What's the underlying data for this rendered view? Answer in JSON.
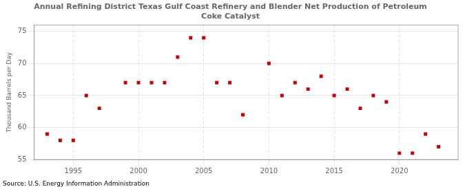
{
  "chart_data": {
    "type": "scatter",
    "title": "Annual Refining District Texas Gulf Coast Refinery and Blender Net Production of Petroleum\nCoke Catalyst",
    "ylabel": "Thousand Barrels per Day",
    "source": "Source: U.S. Energy Information Administration",
    "x": [
      1993,
      1994,
      1995,
      1996,
      1997,
      1999,
      2000,
      2001,
      2002,
      2003,
      2004,
      2005,
      2006,
      2007,
      2008,
      2010,
      2011,
      2012,
      2013,
      2014,
      2015,
      2016,
      2017,
      2018,
      2019,
      2020,
      2021,
      2022,
      2023
    ],
    "values": [
      59.0,
      58.0,
      58.0,
      65.0,
      63.0,
      67.0,
      67.0,
      67.0,
      67.0,
      71.0,
      74.0,
      74.0,
      67.0,
      67.0,
      62.0,
      70.0,
      65.0,
      67.0,
      66.0,
      68.0,
      65.0,
      66.0,
      63.0,
      65.0,
      64.0,
      56.0,
      56.0,
      59.0,
      57.0
    ],
    "color": "#cc0000",
    "marker": "square",
    "xlim": [
      1992,
      2024.5
    ],
    "ylim": [
      55,
      76
    ],
    "xticks": [
      1995,
      2000,
      2005,
      2010,
      2015,
      2020
    ],
    "yticks": [
      55,
      60,
      65,
      70,
      75
    ],
    "grid": true
  }
}
